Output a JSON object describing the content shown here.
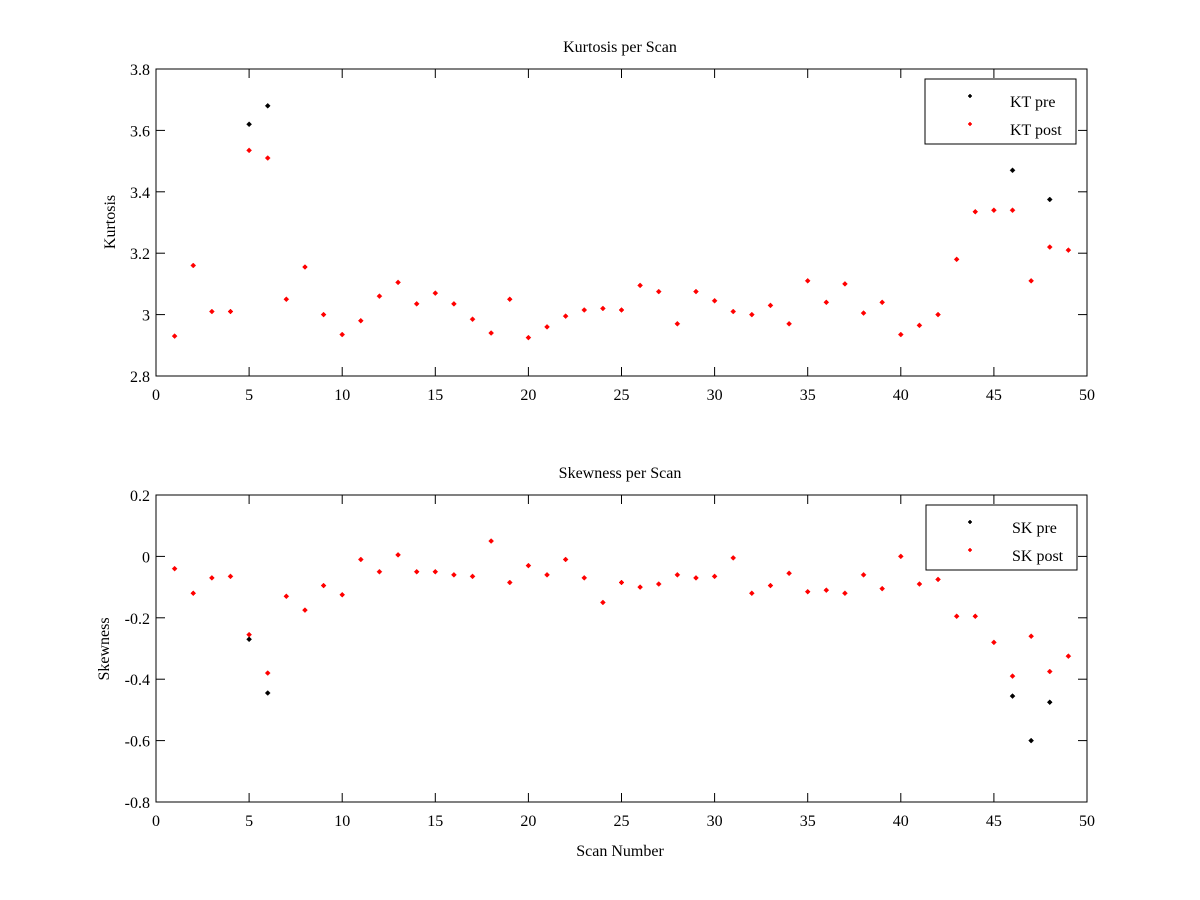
{
  "colors": {
    "pre": "#000000",
    "post": "#ff0000",
    "axes": "#000000",
    "background": "#ffffff"
  },
  "chart_data": [
    {
      "type": "scatter",
      "title": "Kurtosis per Scan",
      "xlabel": "",
      "ylabel": "Kurtosis",
      "xlim": [
        0,
        50
      ],
      "ylim": [
        2.8,
        3.8
      ],
      "xticks": [
        0,
        5,
        10,
        15,
        20,
        25,
        30,
        35,
        40,
        45,
        50
      ],
      "yticks": [
        2.8,
        3,
        3.2,
        3.4,
        3.6,
        3.8
      ],
      "xtick_labels": [
        "0",
        "5",
        "10",
        "15",
        "20",
        "25",
        "30",
        "35",
        "40",
        "45",
        "50"
      ],
      "ytick_labels": [
        "2.8",
        "3",
        "3.2",
        "3.4",
        "3.6",
        "3.8"
      ],
      "grid": false,
      "legend_position": "top-right",
      "series": [
        {
          "name": "KT pre",
          "color": "#000000",
          "points": [
            [
              5,
              3.62
            ],
            [
              6,
              3.68
            ],
            [
              46,
              3.47
            ],
            [
              48,
              3.375
            ]
          ]
        },
        {
          "name": "KT post",
          "color": "#ff0000",
          "points": [
            [
              1,
              2.93
            ],
            [
              2,
              3.16
            ],
            [
              3,
              3.01
            ],
            [
              4,
              3.01
            ],
            [
              5,
              3.535
            ],
            [
              6,
              3.51
            ],
            [
              7,
              3.05
            ],
            [
              8,
              3.155
            ],
            [
              9,
              3.0
            ],
            [
              10,
              2.935
            ],
            [
              11,
              2.98
            ],
            [
              12,
              3.06
            ],
            [
              13,
              3.105
            ],
            [
              14,
              3.035
            ],
            [
              15,
              3.07
            ],
            [
              16,
              3.035
            ],
            [
              17,
              2.985
            ],
            [
              18,
              2.94
            ],
            [
              19,
              3.05
            ],
            [
              20,
              2.925
            ],
            [
              21,
              2.96
            ],
            [
              22,
              2.995
            ],
            [
              23,
              3.015
            ],
            [
              24,
              3.02
            ],
            [
              25,
              3.015
            ],
            [
              26,
              3.095
            ],
            [
              27,
              3.075
            ],
            [
              28,
              2.97
            ],
            [
              29,
              3.075
            ],
            [
              30,
              3.045
            ],
            [
              31,
              3.01
            ],
            [
              32,
              3.0
            ],
            [
              33,
              3.03
            ],
            [
              34,
              2.97
            ],
            [
              35,
              3.11
            ],
            [
              36,
              3.04
            ],
            [
              37,
              3.1
            ],
            [
              38,
              3.005
            ],
            [
              39,
              3.04
            ],
            [
              40,
              2.935
            ],
            [
              41,
              2.965
            ],
            [
              42,
              3.0
            ],
            [
              43,
              3.18
            ],
            [
              44,
              3.335
            ],
            [
              45,
              3.34
            ],
            [
              46,
              3.34
            ],
            [
              47,
              3.11
            ],
            [
              48,
              3.22
            ],
            [
              49,
              3.21
            ]
          ]
        }
      ]
    },
    {
      "type": "scatter",
      "title": "Skewness per Scan",
      "xlabel": "Scan Number",
      "ylabel": "Skewness",
      "xlim": [
        0,
        50
      ],
      "ylim": [
        -0.8,
        0.2
      ],
      "xticks": [
        0,
        5,
        10,
        15,
        20,
        25,
        30,
        35,
        40,
        45,
        50
      ],
      "yticks": [
        -0.8,
        -0.6,
        -0.4,
        -0.2,
        0,
        0.2
      ],
      "xtick_labels": [
        "0",
        "5",
        "10",
        "15",
        "20",
        "25",
        "30",
        "35",
        "40",
        "45",
        "50"
      ],
      "ytick_labels": [
        "-0.8",
        "-0.6",
        "-0.4",
        "-0.2",
        "0",
        "0.2"
      ],
      "grid": false,
      "legend_position": "top-right",
      "series": [
        {
          "name": "SK pre",
          "color": "#000000",
          "points": [
            [
              5,
              -0.27
            ],
            [
              6,
              -0.445
            ],
            [
              46,
              -0.455
            ],
            [
              47,
              -0.6
            ],
            [
              48,
              -0.475
            ]
          ]
        },
        {
          "name": "SK post",
          "color": "#ff0000",
          "points": [
            [
              1,
              -0.04
            ],
            [
              2,
              -0.12
            ],
            [
              3,
              -0.07
            ],
            [
              4,
              -0.065
            ],
            [
              5,
              -0.255
            ],
            [
              6,
              -0.38
            ],
            [
              7,
              -0.13
            ],
            [
              8,
              -0.175
            ],
            [
              9,
              -0.095
            ],
            [
              10,
              -0.125
            ],
            [
              11,
              -0.01
            ],
            [
              12,
              -0.05
            ],
            [
              13,
              0.005
            ],
            [
              14,
              -0.05
            ],
            [
              15,
              -0.05
            ],
            [
              16,
              -0.06
            ],
            [
              17,
              -0.065
            ],
            [
              18,
              0.05
            ],
            [
              19,
              -0.085
            ],
            [
              20,
              -0.03
            ],
            [
              21,
              -0.06
            ],
            [
              22,
              -0.01
            ],
            [
              23,
              -0.07
            ],
            [
              24,
              -0.15
            ],
            [
              25,
              -0.085
            ],
            [
              26,
              -0.1
            ],
            [
              27,
              -0.09
            ],
            [
              28,
              -0.06
            ],
            [
              29,
              -0.07
            ],
            [
              30,
              -0.065
            ],
            [
              31,
              -0.005
            ],
            [
              32,
              -0.12
            ],
            [
              33,
              -0.095
            ],
            [
              34,
              -0.055
            ],
            [
              35,
              -0.115
            ],
            [
              36,
              -0.11
            ],
            [
              37,
              -0.12
            ],
            [
              38,
              -0.06
            ],
            [
              39,
              -0.105
            ],
            [
              40,
              0.0
            ],
            [
              41,
              -0.09
            ],
            [
              42,
              -0.075
            ],
            [
              43,
              -0.195
            ],
            [
              44,
              -0.195
            ],
            [
              45,
              -0.28
            ],
            [
              46,
              -0.39
            ],
            [
              47,
              -0.26
            ],
            [
              48,
              -0.375
            ],
            [
              49,
              -0.325
            ]
          ]
        }
      ]
    }
  ]
}
